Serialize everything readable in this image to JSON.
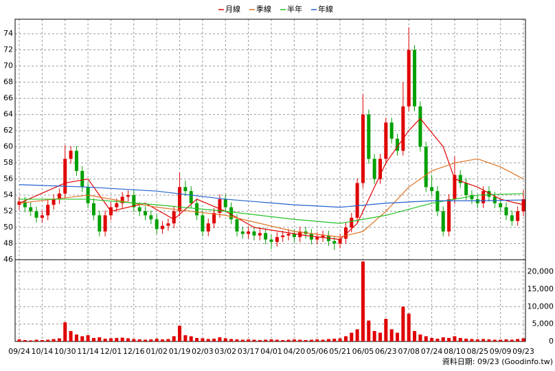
{
  "chart_data": {
    "type": "candlestick",
    "categories": [
      "09/24",
      null,
      null,
      null,
      "10/14",
      null,
      null,
      null,
      "10/30",
      null,
      null,
      null,
      "11/14",
      null,
      null,
      null,
      "12/01",
      null,
      null,
      null,
      "12/16",
      null,
      null,
      null,
      "01/02",
      null,
      null,
      null,
      "01/19",
      null,
      null,
      null,
      "02/03",
      null,
      null,
      null,
      "03/02",
      null,
      null,
      null,
      "03/17",
      null,
      null,
      null,
      "04/01",
      null,
      null,
      null,
      "04/20",
      null,
      null,
      null,
      "05/06",
      null,
      null,
      null,
      "05/21",
      null,
      null,
      null,
      "06/05",
      null,
      null,
      null,
      "06/23",
      null,
      null,
      null,
      "07/08",
      null,
      null,
      null,
      "07/24",
      null,
      null,
      null,
      "08/10",
      null,
      null,
      null,
      "08/25",
      null,
      null,
      null,
      "09/09",
      null,
      null,
      null,
      "09/23"
    ],
    "open": [
      52.8,
      53.2,
      52.5,
      52.0,
      51.2,
      51.5,
      52.8,
      53.5,
      54.2,
      58.5,
      59.5,
      57.0,
      55.0,
      53.0,
      51.5,
      49.5,
      51.5,
      52.5,
      53.0,
      53.8,
      54.0,
      52.5,
      52.0,
      51.5,
      51.0,
      49.8,
      50.2,
      50.5,
      52.0,
      55.0,
      54.5,
      53.0,
      51.5,
      49.5,
      50.5,
      51.8,
      53.5,
      52.5,
      51.0,
      49.5,
      49.2,
      49.5,
      49.0,
      49.3,
      48.5,
      48.2,
      48.8,
      49.0,
      49.2,
      48.8,
      49.5,
      49.2,
      48.5,
      48.8,
      49.0,
      48.3,
      48.0,
      48.6,
      50.0,
      51.2,
      55.5,
      64.0,
      58.5,
      56.0,
      58.5,
      63.0,
      61.0,
      59.5,
      65.0,
      72.0,
      65.0,
      60.0,
      55.0,
      54.5,
      52.0,
      49.5,
      53.5,
      56.5,
      55.5,
      54.0,
      53.5,
      53.0,
      54.5,
      53.8,
      53.0,
      52.5,
      51.5,
      50.8,
      52.0
    ],
    "high": [
      53.8,
      53.8,
      53.1,
      52.6,
      52.1,
      53.4,
      54.1,
      54.8,
      60.2,
      60.1,
      60.1,
      57.6,
      55.6,
      53.6,
      52.1,
      52.1,
      53.1,
      53.6,
      54.4,
      54.6,
      54.6,
      53.1,
      52.6,
      52.1,
      51.6,
      50.8,
      51.1,
      52.6,
      56.8,
      55.8,
      55.1,
      53.6,
      52.1,
      51.1,
      52.4,
      54.1,
      54.1,
      53.1,
      51.6,
      50.1,
      50.1,
      50.1,
      49.9,
      49.9,
      49.1,
      49.4,
      49.6,
      49.8,
      49.8,
      50.1,
      50.1,
      49.8,
      49.4,
      49.6,
      49.6,
      48.9,
      49.2,
      50.6,
      51.8,
      56.1,
      66.5,
      64.6,
      59.1,
      59.1,
      63.6,
      63.6,
      61.6,
      68.0,
      74.8,
      72.6,
      65.6,
      60.6,
      56.5,
      55.1,
      52.6,
      54.1,
      58.8,
      57.1,
      56.1,
      54.6,
      54.1,
      55.1,
      55.1,
      54.4,
      53.6,
      53.1,
      52.1,
      52.6,
      54.6
    ],
    "low": [
      52.2,
      51.9,
      51.4,
      50.6,
      50.6,
      50.9,
      52.2,
      52.9,
      53.6,
      57.9,
      56.4,
      54.4,
      52.4,
      50.9,
      48.9,
      48.9,
      50.9,
      51.9,
      52.4,
      53.2,
      51.9,
      51.4,
      50.9,
      50.4,
      49.2,
      49.2,
      49.6,
      49.9,
      51.4,
      53.9,
      52.4,
      50.9,
      48.9,
      48.9,
      49.9,
      51.2,
      51.9,
      50.4,
      48.9,
      48.6,
      48.6,
      48.4,
      48.4,
      47.9,
      47.3,
      47.6,
      48.2,
      48.4,
      48.2,
      48.2,
      48.6,
      47.9,
      47.9,
      48.2,
      47.7,
      47.2,
      47.4,
      48.0,
      49.4,
      50.6,
      54.9,
      57.9,
      55.4,
      55.4,
      57.9,
      60.4,
      58.9,
      58.9,
      64.4,
      64.4,
      59.4,
      54.4,
      53.9,
      51.4,
      48.9,
      48.9,
      52.9,
      54.9,
      53.4,
      52.9,
      52.4,
      52.4,
      53.2,
      52.4,
      51.9,
      50.9,
      50.2,
      50.2,
      51.4
    ],
    "close": [
      53.2,
      52.5,
      52.0,
      51.2,
      51.5,
      52.8,
      53.5,
      54.2,
      58.5,
      59.5,
      57.0,
      55.0,
      53.0,
      51.5,
      49.5,
      51.5,
      52.5,
      53.0,
      53.8,
      54.0,
      52.5,
      52.0,
      51.5,
      51.0,
      49.8,
      50.2,
      50.5,
      52.0,
      55.0,
      54.5,
      53.0,
      51.5,
      49.5,
      50.5,
      51.8,
      53.5,
      52.5,
      51.0,
      49.5,
      49.2,
      49.5,
      49.0,
      49.3,
      48.5,
      48.2,
      48.8,
      49.0,
      49.2,
      48.8,
      49.5,
      49.2,
      48.5,
      48.8,
      49.0,
      48.3,
      48.0,
      48.6,
      50.0,
      51.2,
      55.5,
      64.0,
      58.5,
      56.0,
      58.5,
      63.0,
      61.0,
      59.5,
      65.0,
      72.0,
      65.0,
      60.0,
      55.0,
      54.5,
      52.0,
      49.5,
      53.5,
      56.5,
      55.5,
      54.0,
      53.5,
      53.0,
      54.5,
      53.8,
      53.0,
      52.5,
      51.5,
      50.8,
      52.0,
      53.5
    ],
    "up_color": "#e00000",
    "down_color": "#00a000",
    "volume": {
      "color": "#e00000",
      "axis": "y2",
      "values": [
        600,
        400,
        300,
        500,
        400,
        500,
        700,
        900,
        5500,
        3000,
        2000,
        1500,
        1800,
        1000,
        1200,
        800,
        900,
        1000,
        1100,
        900,
        700,
        600,
        500,
        600,
        800,
        600,
        700,
        1500,
        4500,
        1800,
        1500,
        1000,
        900,
        700,
        800,
        1200,
        900,
        700,
        600,
        500,
        600,
        500,
        400,
        500,
        600,
        500,
        400,
        500,
        600,
        500,
        400,
        500,
        600,
        500,
        700,
        800,
        900,
        1500,
        2500,
        3500,
        23000,
        6000,
        3000,
        2500,
        6500,
        3500,
        2500,
        10000,
        8000,
        3000,
        2000,
        1500,
        1000,
        800,
        1200,
        1000,
        1500,
        1000,
        800,
        700,
        600,
        700,
        600,
        500,
        500,
        600,
        500,
        700,
        900
      ]
    },
    "series": [
      {
        "name": "月線",
        "color": "#e00000",
        "x": [
          0,
          8,
          12,
          16,
          22,
          27,
          31,
          36,
          41,
          50,
          56,
          59,
          64,
          68,
          70,
          74,
          76,
          80,
          84,
          88
        ],
        "values": [
          53,
          55.5,
          56,
          52,
          53,
          51,
          53.5,
          52,
          50,
          49,
          48.5,
          50.5,
          58,
          62,
          63.5,
          60,
          56,
          55,
          53.5,
          52.8
        ]
      },
      {
        "name": "季線",
        "color": "#e07020",
        "x": [
          0,
          12,
          24,
          36,
          48,
          56,
          60,
          64,
          68,
          72,
          76,
          80,
          84,
          88
        ],
        "values": [
          53,
          54,
          52.5,
          51.5,
          49.5,
          48.8,
          49.5,
          52,
          55,
          57,
          58,
          58.5,
          57.5,
          56
        ]
      },
      {
        "name": "半年",
        "color": "#20c020",
        "x": [
          0,
          12,
          24,
          36,
          48,
          56,
          64,
          72,
          80,
          88
        ],
        "values": [
          53.5,
          53.5,
          52.8,
          52,
          51,
          50.5,
          51.5,
          53,
          54,
          54.2
        ]
      },
      {
        "name": "年線",
        "color": "#2060d0",
        "x": [
          0,
          12,
          24,
          36,
          48,
          56,
          64,
          72,
          80,
          88
        ],
        "values": [
          55.3,
          55,
          54.5,
          53.5,
          52.8,
          52.5,
          53,
          53.3,
          53.3,
          53.4
        ]
      }
    ],
    "ylim": [
      46,
      75.8
    ],
    "yticks": [
      46,
      48,
      50,
      52,
      54,
      56,
      58,
      60,
      62,
      64,
      66,
      68,
      70,
      72,
      74
    ],
    "y2lim": [
      0,
      23500
    ],
    "y2ticks": [
      0,
      {
        "value": 5000,
        "label": "5,000"
      },
      {
        "value": 10000,
        "label": "10,000"
      },
      {
        "value": 15000,
        "label": "15,000"
      },
      {
        "value": 20000,
        "label": "20,000"
      }
    ],
    "grid": true,
    "source": "資料日期: 09/23 (Goodinfo.tw)"
  }
}
